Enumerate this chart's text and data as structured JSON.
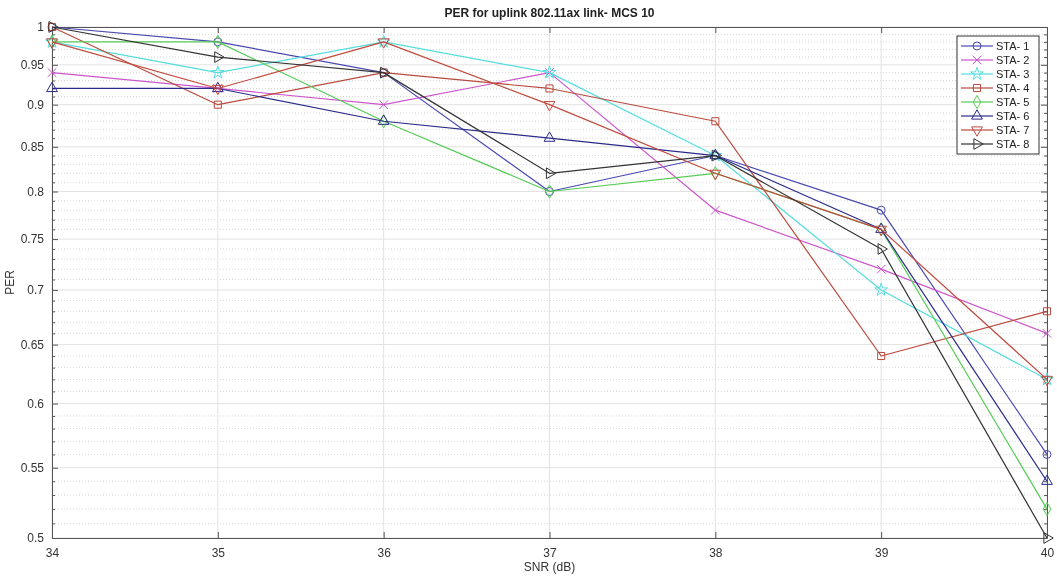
{
  "chart_data": {
    "type": "line",
    "title": "PER for uplink 802.11ax link-  MCS 10",
    "xlabel": "SNR (dB)",
    "ylabel": "PER",
    "x": [
      34,
      35,
      36,
      37,
      38,
      39,
      40
    ],
    "series": [
      {
        "name": "STA- 1",
        "color": "#4848b0",
        "marker": "circle",
        "values": [
          1,
          0.98,
          0.94,
          0.8,
          0.84,
          0.78,
          0.56
        ]
      },
      {
        "name": "STA- 2",
        "color": "#cc55cc",
        "marker": "cross",
        "values": [
          0.94,
          0.92,
          0.9,
          0.94,
          0.78,
          0.72,
          0.66
        ]
      },
      {
        "name": "STA- 3",
        "color": "#55dddd",
        "marker": "star",
        "values": [
          0.98,
          0.94,
          0.98,
          0.94,
          0.84,
          0.7,
          0.62
        ]
      },
      {
        "name": "STA- 4",
        "color": "#b84a3c",
        "marker": "square",
        "values": [
          1,
          0.9,
          0.94,
          0.92,
          0.88,
          0.64,
          0.68
        ]
      },
      {
        "name": "STA- 5",
        "color": "#55cc55",
        "marker": "diamond",
        "values": [
          0.98,
          0.98,
          0.88,
          0.8,
          0.82,
          0.76,
          0.52
        ]
      },
      {
        "name": "STA- 6",
        "color": "#2a2a8a",
        "marker": "triangle",
        "values": [
          0.92,
          0.92,
          0.88,
          0.86,
          0.84,
          0.76,
          0.54
        ]
      },
      {
        "name": "STA- 7",
        "color": "#c04a3c",
        "marker": "triangle-down",
        "values": [
          0.98,
          0.92,
          0.98,
          0.9,
          0.82,
          0.76,
          0.62
        ]
      },
      {
        "name": "STA- 8",
        "color": "#333333",
        "marker": "triangle-right",
        "values": [
          1,
          0.96,
          0.94,
          0.82,
          0.84,
          0.74,
          0.5
        ]
      }
    ],
    "xlim": [
      34,
      40
    ],
    "xticks": [
      34,
      35,
      36,
      37,
      38,
      39,
      40
    ],
    "ylim": [
      0.5,
      1
    ],
    "yticks": [
      0.5,
      {
        "value": 0.51,
        "label": null
      },
      {
        "value": 0.52,
        "label": null
      },
      {
        "value": 0.53,
        "label": null
      },
      {
        "value": 0.54,
        "label": null
      },
      0.55,
      {
        "value": 0.56,
        "label": null
      },
      {
        "value": 0.57,
        "label": null
      },
      {
        "value": 0.58,
        "label": null
      },
      {
        "value": 0.59,
        "label": null
      },
      0.6,
      {
        "value": 0.61,
        "label": null
      },
      {
        "value": 0.62,
        "label": null
      },
      {
        "value": 0.63,
        "label": null
      },
      {
        "value": 0.64,
        "label": null
      },
      0.65,
      {
        "value": 0.66,
        "label": null
      },
      {
        "value": 0.67,
        "label": null
      },
      {
        "value": 0.68,
        "label": null
      },
      {
        "value": 0.69,
        "label": null
      },
      0.7,
      {
        "value": 0.71,
        "label": null
      },
      {
        "value": 0.72,
        "label": null
      },
      {
        "value": 0.73,
        "label": null
      },
      {
        "value": 0.74,
        "label": null
      },
      0.75,
      {
        "value": 0.76,
        "label": null
      },
      {
        "value": 0.77,
        "label": null
      },
      {
        "value": 0.78,
        "label": null
      },
      {
        "value": 0.79,
        "label": null
      },
      0.8,
      {
        "value": 0.81,
        "label": null
      },
      {
        "value": 0.82,
        "label": null
      },
      {
        "value": 0.83,
        "label": null
      },
      {
        "value": 0.84,
        "label": null
      },
      0.85,
      {
        "value": 0.86,
        "label": null
      },
      {
        "value": 0.87,
        "label": null
      },
      {
        "value": 0.88,
        "label": null
      },
      {
        "value": 0.89,
        "label": null
      },
      0.9,
      {
        "value": 0.91,
        "label": null
      },
      {
        "value": 0.92,
        "label": null
      },
      {
        "value": 0.93,
        "label": null
      },
      {
        "value": 0.94,
        "label": null
      },
      0.95,
      {
        "value": 0.96,
        "label": null
      },
      {
        "value": 0.97,
        "label": null
      },
      {
        "value": 0.98,
        "label": null
      },
      {
        "value": 0.99,
        "label": null
      },
      1
    ],
    "log": true,
    "grid": true,
    "legend": "top right",
    "line_style": "solid"
  }
}
